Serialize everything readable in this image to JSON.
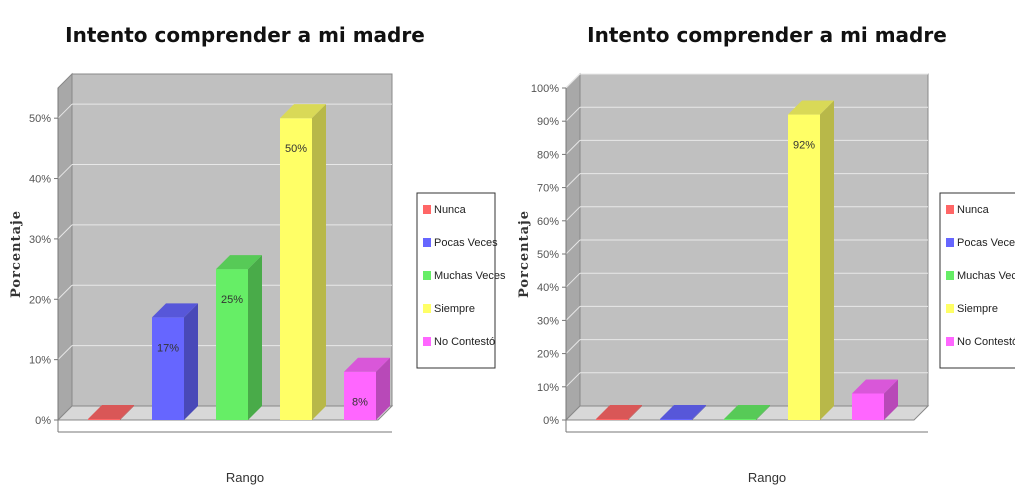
{
  "chart_data": [
    {
      "type": "bar",
      "title": "Intento comprender a mi madre",
      "xlabel": "Rango",
      "ylabel": "Porcentaje",
      "ylim": [
        0,
        55
      ],
      "yticks": [
        "0%",
        "10%",
        "20%",
        "30%",
        "40%",
        "50%"
      ],
      "ytick_values": [
        0,
        10,
        20,
        30,
        40,
        50
      ],
      "categories": [
        "Nunca",
        "Pocas Veces",
        "Muchas Veces",
        "Siempre",
        "No Contestó"
      ],
      "values": [
        0,
        17,
        25,
        50,
        8
      ],
      "data_labels": [
        "",
        "17%",
        "25%",
        "50%",
        "8%"
      ],
      "colors": [
        "#ff6666",
        "#6666ff",
        "#66ee66",
        "#ffff66",
        "#ff66ff"
      ],
      "grid": true,
      "legend_position": "right"
    },
    {
      "type": "bar",
      "title": "Intento comprender a mi madre",
      "xlabel": "Rango",
      "ylabel": "Porcentaje",
      "ylim": [
        0,
        100
      ],
      "yticks": [
        "0%",
        "10%",
        "20%",
        "30%",
        "40%",
        "50%",
        "60%",
        "70%",
        "80%",
        "90%",
        "100%"
      ],
      "ytick_values": [
        0,
        10,
        20,
        30,
        40,
        50,
        60,
        70,
        80,
        90,
        100
      ],
      "categories": [
        "Nunca",
        "Pocas Veces",
        "Muchas Veces",
        "Siempre",
        "No Contestó"
      ],
      "values": [
        0,
        0,
        0,
        92,
        8
      ],
      "data_labels": [
        "",
        "",
        "",
        "92%",
        ""
      ],
      "colors": [
        "#ff6666",
        "#6666ff",
        "#66ee66",
        "#ffff66",
        "#ff66ff"
      ],
      "grid": true,
      "legend_position": "right"
    }
  ]
}
